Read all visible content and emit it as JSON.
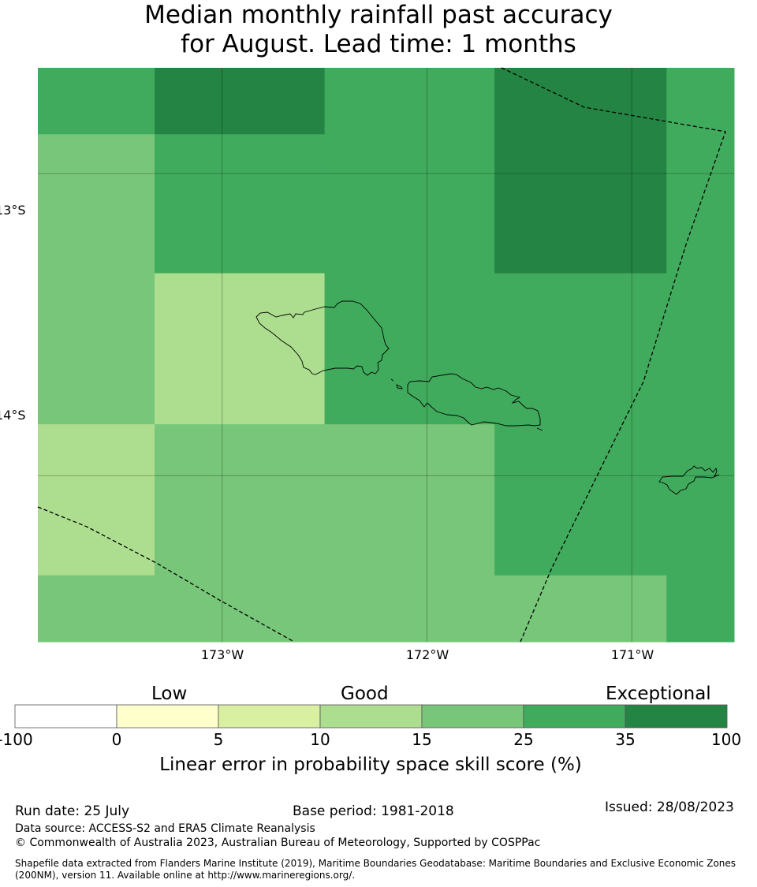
{
  "title": {
    "line1": "Median monthly rainfall past accuracy",
    "line2": "for August. Lead time: 1 months"
  },
  "map": {
    "lon_range": [
      -173.9,
      -170.5
    ],
    "lat_range": [
      -14.55,
      -12.65
    ],
    "lon_ticks": [
      {
        "value": -173,
        "label": "173°W"
      },
      {
        "value": -172,
        "label": "172°W"
      },
      {
        "value": -171,
        "label": "171°W"
      }
    ],
    "lat_ticks": [
      {
        "value": -13,
        "label": "13°S"
      },
      {
        "value": -14,
        "label": "14°S"
      }
    ],
    "grid": true,
    "cells": [
      {
        "lon": [
          -173.9,
          -173.33
        ],
        "lat": [
          -12.65,
          -12.87
        ],
        "score": 30
      },
      {
        "lon": [
          -173.33,
          -172.5
        ],
        "lat": [
          -12.65,
          -12.87
        ],
        "score": 40
      },
      {
        "lon": [
          -172.5,
          -171.67
        ],
        "lat": [
          -12.65,
          -12.87
        ],
        "score": 30
      },
      {
        "lon": [
          -171.67,
          -170.83
        ],
        "lat": [
          -12.65,
          -12.87
        ],
        "score": 40
      },
      {
        "lon": [
          -170.83,
          -170.5
        ],
        "lat": [
          -12.65,
          -12.87
        ],
        "score": 30
      },
      {
        "lon": [
          -173.9,
          -173.33
        ],
        "lat": [
          -12.87,
          -13.33
        ],
        "score": 20
      },
      {
        "lon": [
          -173.33,
          -172.5
        ],
        "lat": [
          -12.87,
          -13.33
        ],
        "score": 30
      },
      {
        "lon": [
          -172.5,
          -171.67
        ],
        "lat": [
          -12.87,
          -13.33
        ],
        "score": 30
      },
      {
        "lon": [
          -171.67,
          -170.83
        ],
        "lat": [
          -12.87,
          -13.33
        ],
        "score": 40
      },
      {
        "lon": [
          -170.83,
          -170.5
        ],
        "lat": [
          -12.87,
          -13.33
        ],
        "score": 30
      },
      {
        "lon": [
          -173.9,
          -173.33
        ],
        "lat": [
          -13.33,
          -13.83
        ],
        "score": 20
      },
      {
        "lon": [
          -173.33,
          -172.5
        ],
        "lat": [
          -13.33,
          -13.83
        ],
        "score": 12
      },
      {
        "lon": [
          -172.5,
          -171.67
        ],
        "lat": [
          -13.33,
          -13.83
        ],
        "score": 30
      },
      {
        "lon": [
          -171.67,
          -170.83
        ],
        "lat": [
          -13.33,
          -13.83
        ],
        "score": 30
      },
      {
        "lon": [
          -170.83,
          -170.5
        ],
        "lat": [
          -13.33,
          -13.83
        ],
        "score": 30
      },
      {
        "lon": [
          -173.9,
          -173.33
        ],
        "lat": [
          -13.83,
          -14.33
        ],
        "score": 12
      },
      {
        "lon": [
          -173.33,
          -172.5
        ],
        "lat": [
          -13.83,
          -14.33
        ],
        "score": 20
      },
      {
        "lon": [
          -172.5,
          -171.67
        ],
        "lat": [
          -13.83,
          -14.33
        ],
        "score": 20
      },
      {
        "lon": [
          -171.67,
          -170.83
        ],
        "lat": [
          -13.83,
          -14.33
        ],
        "score": 30
      },
      {
        "lon": [
          -170.83,
          -170.5
        ],
        "lat": [
          -13.83,
          -14.33
        ],
        "score": 30
      },
      {
        "lon": [
          -173.9,
          -173.33
        ],
        "lat": [
          -14.33,
          -14.55
        ],
        "score": 20
      },
      {
        "lon": [
          -173.33,
          -172.5
        ],
        "lat": [
          -14.33,
          -14.55
        ],
        "score": 20
      },
      {
        "lon": [
          -172.5,
          -171.67
        ],
        "lat": [
          -14.33,
          -14.55
        ],
        "score": 20
      },
      {
        "lon": [
          -171.67,
          -170.83
        ],
        "lat": [
          -14.33,
          -14.55
        ],
        "score": 20
      },
      {
        "lon": [
          -170.83,
          -170.5
        ],
        "lat": [
          -14.33,
          -14.55
        ],
        "score": 30
      }
    ]
  },
  "colorbar": {
    "ticks": [
      "-100",
      "0",
      "5",
      "10",
      "15",
      "25",
      "35",
      "100"
    ],
    "colors": [
      "#ffffff",
      "#ffffcc",
      "#d9f0a3",
      "#addd8e",
      "#78c679",
      "#41ab5d",
      "#238443"
    ],
    "categories": {
      "low": "Low",
      "good": "Good",
      "exceptional": "Exceptional"
    },
    "label": "Linear error in probability space skill score (%)"
  },
  "footer": {
    "run_date": "Run date: 25 July",
    "base_period": "Base period: 1981-2018",
    "issued": "Issued: 28/08/2023",
    "data_source": "Data source: ACCESS-S2 and ERA5 Climate Reanalysis",
    "copyright": "© Commonwealth of Australia 2023, Australian Bureau of Meteorology, Supported by COSPPac",
    "shapefile": "Shapefile data extracted from Flanders Marine Institute (2019), Maritime Boundaries Geodatabase: Maritime Boundaries and Exclusive Economic Zones (200NM), version 11. Available online at http://www.marineregions.org/."
  }
}
